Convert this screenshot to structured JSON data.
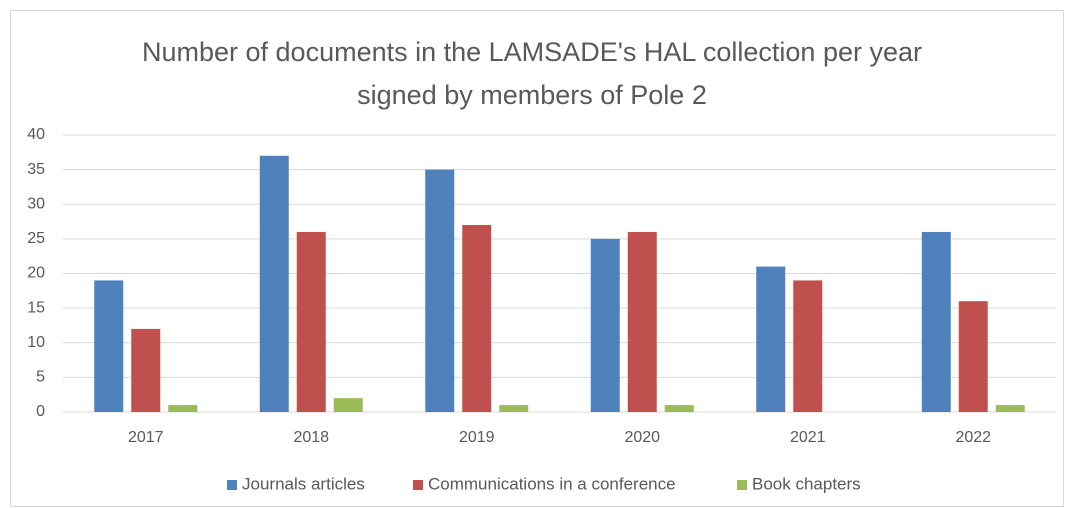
{
  "chart_data": {
    "type": "bar",
    "title": [
      "Number of documents in the LAMSADE's HAL collection per year",
      "signed by members of Pole 2"
    ],
    "categories": [
      "2017",
      "2018",
      "2019",
      "2020",
      "2021",
      "2022"
    ],
    "series": [
      {
        "name": "Journals articles",
        "color": "#4f81bd",
        "values": [
          19,
          37,
          35,
          25,
          21,
          26
        ]
      },
      {
        "name": "Communications in a conference",
        "color": "#c0504d",
        "values": [
          12,
          26,
          27,
          26,
          19,
          16
        ]
      },
      {
        "name": "Book chapters",
        "color": "#9bbb59",
        "values": [
          1,
          2,
          1,
          1,
          0,
          1
        ]
      }
    ],
    "ylim": [
      0,
      40
    ],
    "yticks": [
      0,
      5,
      10,
      15,
      20,
      25,
      30,
      35,
      40
    ],
    "grid": true,
    "legend": "bottom"
  }
}
